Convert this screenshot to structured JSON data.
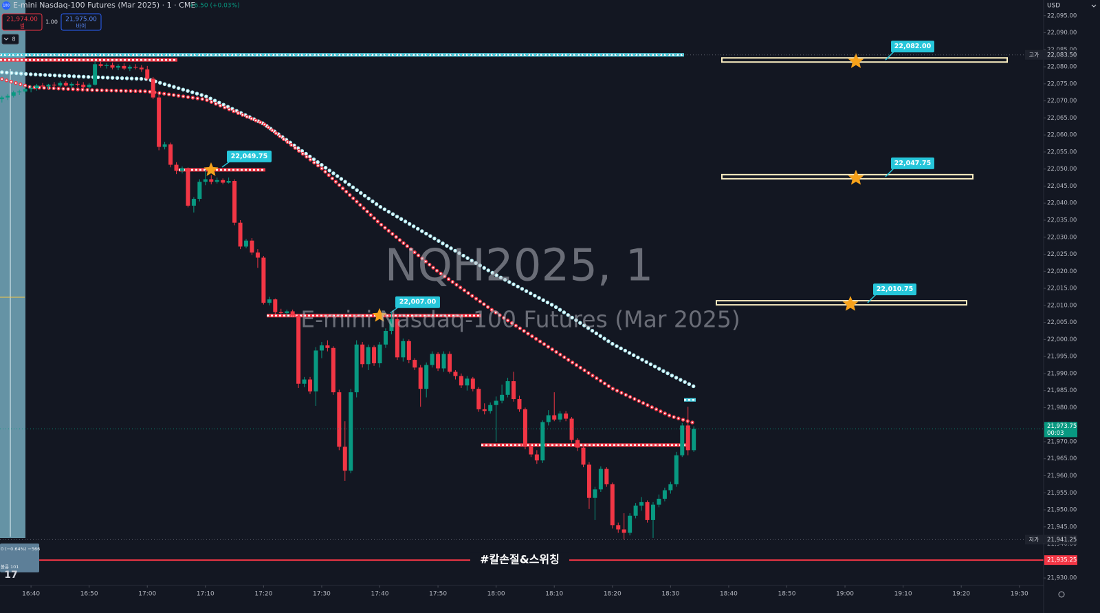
{
  "header": {
    "icon": "100",
    "title": "E-mini Nasdaq-100 Futures (Mar 2025) · 1 · CME",
    "change": "+6.50 (+0.03%)",
    "sell_price": "21,974.00",
    "sell_label": "셀",
    "spread": "1.00",
    "buy_price": "21,975.00",
    "buy_label": "바이",
    "indicators": "8",
    "currency": "USD"
  },
  "overlay": {
    "line1": "0 (−0.64%) −566",
    "line2": "볼륨 101"
  },
  "chart_data": {
    "type": "candlestick",
    "watermark": "NQH2025, 1",
    "watermark_subtitle": "E-mini Nasdaq-100 Futures (Mar 2025)",
    "annotation": "#칼손절&스위칭",
    "up_color": "#089981",
    "down_color": "#f23645",
    "xlim": [
      "16:34:40",
      "19:34:10"
    ],
    "xticks": [
      "16:40",
      "16:50",
      "17:00",
      "17:10",
      "17:20",
      "17:30",
      "17:40",
      "17:50",
      "18:00",
      "18:10",
      "18:20",
      "18:30",
      "18:40",
      "18:50",
      "19:00",
      "19:10",
      "19:20",
      "19:30"
    ],
    "ylim": [
      21927.8,
      22099.6
    ],
    "yticks": [
      {
        "value": 22095,
        "label": "22,095.00"
      },
      {
        "value": 22090,
        "label": "22,090.00"
      },
      {
        "value": 22085,
        "label": "22,085.00"
      },
      {
        "value": 22080,
        "label": "22,080.00"
      },
      {
        "value": 22075,
        "label": "22,075.00"
      },
      {
        "value": 22070,
        "label": "22,070.00"
      },
      {
        "value": 22065,
        "label": "22,065.00"
      },
      {
        "value": 22060,
        "label": "22,060.00"
      },
      {
        "value": 22055,
        "label": "22,055.00"
      },
      {
        "value": 22050,
        "label": "22,050.00"
      },
      {
        "value": 22045,
        "label": "22,045.00"
      },
      {
        "value": 22040,
        "label": "22,040.00"
      },
      {
        "value": 22035,
        "label": "22,035.00"
      },
      {
        "value": 22030,
        "label": "22,030.00"
      },
      {
        "value": 22025,
        "label": "22,025.00"
      },
      {
        "value": 22020,
        "label": "22,020.00"
      },
      {
        "value": 22015,
        "label": "22,015.00"
      },
      {
        "value": 22010,
        "label": "22,010.00"
      },
      {
        "value": 22005,
        "label": "22,005.00"
      },
      {
        "value": 22000,
        "label": "22,000.00"
      },
      {
        "value": 21995,
        "label": "21,995.00"
      },
      {
        "value": 21990,
        "label": "21,990.00"
      },
      {
        "value": 21985,
        "label": "21,985.00"
      },
      {
        "value": 21980,
        "label": "21,980.00"
      },
      {
        "value": 21975,
        "label": "21,975.00"
      },
      {
        "value": 21970,
        "label": "21,970.00"
      },
      {
        "value": 21965,
        "label": "21,965.00"
      },
      {
        "value": 21960,
        "label": "21,960.00"
      },
      {
        "value": 21955,
        "label": "21,955.00"
      },
      {
        "value": 21950,
        "label": "21,950.00"
      },
      {
        "value": 21945,
        "label": "21,945.00"
      },
      {
        "value": 21940,
        "label": "21,940.00"
      },
      {
        "value": 21935,
        "label": "21,935.00"
      },
      {
        "value": 21930,
        "label": "21,930.00"
      }
    ],
    "candles": [
      [
        "16:35",
        22070.5,
        22071.5,
        22069.5,
        22071
      ],
      [
        "16:36",
        22071,
        22072,
        22070.25,
        22071.5
      ],
      [
        "16:37",
        22071.5,
        22073,
        22071,
        22072.5
      ],
      [
        "16:38",
        22072.5,
        22073.25,
        22071.75,
        22072.75
      ],
      [
        "16:39",
        22072.75,
        22074.25,
        22072.25,
        22073.5
      ],
      [
        "16:40",
        22073.5,
        22074.5,
        22072.5,
        22073.75
      ],
      [
        "16:41",
        22073.75,
        22075,
        22073,
        22074.5
      ],
      [
        "16:42",
        22074.5,
        22075.25,
        22073.75,
        22074.25
      ],
      [
        "16:43",
        22074.25,
        22075,
        22073.5,
        22074.75
      ],
      [
        "16:44",
        22074.75,
        22075.5,
        22074,
        22074.5
      ],
      [
        "16:45",
        22074.5,
        22075.75,
        22074,
        22075.25
      ],
      [
        "16:46",
        22075.25,
        22075.75,
        22074.25,
        22074.5
      ],
      [
        "16:47",
        22074.5,
        22075.5,
        22073.75,
        22075
      ],
      [
        "16:48",
        22075,
        22075.75,
        22074.25,
        22074.75
      ],
      [
        "16:49",
        22074.75,
        22075.5,
        22073.5,
        22074
      ],
      [
        "16:50",
        22074,
        22075.25,
        22073.5,
        22074.75
      ],
      [
        "16:51",
        22074.75,
        22081.75,
        22074.5,
        22080.75
      ],
      [
        "16:52",
        22080.75,
        22081.5,
        22079.75,
        22080.25
      ],
      [
        "16:53",
        22080.25,
        22081,
        22079.5,
        22080.5
      ],
      [
        "16:54",
        22080.5,
        22081.25,
        22079.25,
        22079.75
      ],
      [
        "16:55",
        22079.75,
        22080.75,
        22079,
        22080.25
      ],
      [
        "16:56",
        22080.25,
        22081,
        22079,
        22079.5
      ],
      [
        "16:57",
        22079.5,
        22080.5,
        22078.75,
        22080
      ],
      [
        "16:58",
        22080,
        22080.75,
        22079.25,
        22079.75
      ],
      [
        "16:59",
        22079.75,
        22080.5,
        22078.5,
        22079.25
      ],
      [
        "17:00",
        22079.25,
        22080.25,
        22076,
        22076.5
      ],
      [
        "17:01",
        22076.5,
        22077,
        22070.5,
        22071
      ],
      [
        "17:02",
        22071,
        22071.75,
        22055.5,
        22056.5
      ],
      [
        "17:03",
        22056.5,
        22058,
        22055.75,
        22057.25
      ],
      [
        "17:04",
        22057.25,
        22057.75,
        22050.5,
        22051.25
      ],
      [
        "17:05",
        22051.25,
        22052,
        22048.5,
        22049.5
      ],
      [
        "17:06",
        22049.5,
        22050.75,
        22048.75,
        22050.25
      ],
      [
        "17:07",
        22050.25,
        22050.5,
        22038.75,
        22039.25
      ],
      [
        "17:08",
        22039.25,
        22041.75,
        22037.25,
        22041.25
      ],
      [
        "17:09",
        22041.25,
        22047,
        22040.5,
        22046.25
      ],
      [
        "17:10",
        22046.25,
        22049.75,
        22045.25,
        22047
      ],
      [
        "17:11",
        22047,
        22048.25,
        22045.5,
        22046.25
      ],
      [
        "17:12",
        22046.25,
        22047.5,
        22045.75,
        22046.75
      ],
      [
        "17:13",
        22046.75,
        22047.25,
        22045.5,
        22046
      ],
      [
        "17:14",
        22046,
        22047.5,
        22045.75,
        22046.5
      ],
      [
        "17:15",
        22046.5,
        22047,
        22033.5,
        22034.25
      ],
      [
        "17:16",
        22034.25,
        22035,
        22026.5,
        22027.25
      ],
      [
        "17:17",
        22027.25,
        22029.5,
        22026.75,
        22029
      ],
      [
        "17:18",
        22029,
        22029.75,
        22024.75,
        22025.5
      ],
      [
        "17:19",
        22025.5,
        22026.5,
        22021,
        22024
      ],
      [
        "17:20",
        22024,
        22024.5,
        22010.25,
        22010.75
      ],
      [
        "17:21",
        22010.75,
        22012.5,
        22010,
        22011.75
      ],
      [
        "17:22",
        22011.75,
        22012,
        22007.25,
        22008
      ],
      [
        "17:23",
        22008,
        22009,
        22007.25,
        22007.75
      ],
      [
        "17:24",
        22007.75,
        22008.75,
        22006.5,
        22008.25
      ],
      [
        "17:25",
        22008.25,
        22008.75,
        22006.5,
        22007
      ],
      [
        "17:26",
        22007,
        22007.5,
        21985.75,
        21987
      ],
      [
        "17:27",
        21987,
        21989,
        21986,
        21988.25
      ],
      [
        "17:28",
        21988.25,
        21989,
        21984,
        21984.75
      ],
      [
        "17:29",
        21984.75,
        21997.75,
        21980.5,
        21996.75
      ],
      [
        "17:30",
        21996.75,
        21999.25,
        21994.5,
        21998.25
      ],
      [
        "17:31",
        21998.25,
        21999.75,
        21996.5,
        21997.5
      ],
      [
        "17:32",
        21997.5,
        21998,
        21983.75,
        21984.5
      ],
      [
        "17:33",
        21984.5,
        21985.25,
        21967.5,
        21968.5
      ],
      [
        "17:34",
        21968.5,
        21976,
        21958.5,
        21961.5
      ],
      [
        "17:35",
        21961.5,
        21985.5,
        21960.75,
        21984.5
      ],
      [
        "17:36",
        21984.5,
        21999.75,
        21983,
        21998.5
      ],
      [
        "17:37",
        21998.5,
        21999.25,
        21991.75,
        21992.75
      ],
      [
        "17:38",
        21992.75,
        21998.5,
        21991,
        21997.75
      ],
      [
        "17:39",
        21997.75,
        21998.25,
        21992.25,
        21993
      ],
      [
        "17:40",
        21993,
        21999.25,
        21991.75,
        21998.5
      ],
      [
        "17:41",
        21998.5,
        22003.25,
        21997.5,
        22002.5
      ],
      [
        "17:42",
        22002.5,
        22007.75,
        22001.5,
        22006
      ],
      [
        "17:43",
        22006,
        22006.75,
        21994,
        21994.75
      ],
      [
        "17:44",
        21994.75,
        22000.25,
        21993.5,
        21999.5
      ],
      [
        "17:45",
        21999.5,
        22000,
        21993,
        21994
      ],
      [
        "17:46",
        21994,
        21994.5,
        21991,
        21991.75
      ],
      [
        "17:47",
        21991.75,
        21992.5,
        21980.25,
        21985.5
      ],
      [
        "17:48",
        21985.5,
        21993.25,
        21983,
        21992.5
      ],
      [
        "17:49",
        21992.5,
        21996.5,
        21991.75,
        21995.75
      ],
      [
        "17:50",
        21995.75,
        21996.25,
        21990.75,
        21991.5
      ],
      [
        "17:51",
        21991.5,
        21996.5,
        21990.5,
        21995.75
      ],
      [
        "17:52",
        21995.75,
        21996.5,
        21990,
        21990.5
      ],
      [
        "17:53",
        21990.5,
        21991,
        21988.25,
        21989.25
      ],
      [
        "17:54",
        21989.25,
        21990,
        21985.75,
        21986.5
      ],
      [
        "17:55",
        21986.5,
        21989.25,
        21985,
        21988.5
      ],
      [
        "17:56",
        21988.5,
        21989,
        21984.75,
        21985.5
      ],
      [
        "17:57",
        21985.5,
        21986,
        21978.75,
        21979.5
      ],
      [
        "17:58",
        21979.5,
        21981.25,
        21978,
        21979
      ],
      [
        "17:59",
        21979,
        21981.5,
        21978.25,
        21980.75
      ],
      [
        "18:00",
        21980.75,
        21983.25,
        21970,
        21982
      ],
      [
        "18:01",
        21982,
        21986.75,
        21981.25,
        21983.75
      ],
      [
        "18:02",
        21983.75,
        21988.75,
        21983,
        21987.75
      ],
      [
        "18:03",
        21987.75,
        21990.5,
        21981.75,
        21982.5
      ],
      [
        "18:04",
        21982.5,
        21983.5,
        21978.75,
        21979.5
      ],
      [
        "18:05",
        21979.5,
        21980,
        21967.75,
        21968.5
      ],
      [
        "18:06",
        21968.5,
        21969.25,
        21965.5,
        21966.25
      ],
      [
        "18:07",
        21966.25,
        21967.5,
        21963.5,
        21964.5
      ],
      [
        "18:08",
        21964.5,
        21976.25,
        21963.75,
        21975.75
      ],
      [
        "18:09",
        21975.75,
        21979.25,
        21974.75,
        21977.75
      ],
      [
        "18:10",
        21977.75,
        21984.5,
        21976,
        21976.5
      ],
      [
        "18:11",
        21976.5,
        21979,
        21975.75,
        21978.25
      ],
      [
        "18:12",
        21978.25,
        21979,
        21976,
        21976.75
      ],
      [
        "18:13",
        21976.75,
        21977.25,
        21969.75,
        21970.5
      ],
      [
        "18:14",
        21970.5,
        21971,
        21967.25,
        21968.25
      ],
      [
        "18:15",
        21968.25,
        21969,
        21962.5,
        21963.25
      ],
      [
        "18:16",
        21963.25,
        21964,
        21950.25,
        21953.5
      ],
      [
        "18:17",
        21953.5,
        21956.75,
        21947,
        21956
      ],
      [
        "18:18",
        21956,
        21962.75,
        21955.25,
        21962
      ],
      [
        "18:19",
        21962,
        21962.5,
        21956.75,
        21957.5
      ],
      [
        "18:20",
        21957.5,
        21958,
        21944.5,
        21945.5
      ],
      [
        "18:21",
        21945.5,
        21946.25,
        21943.25,
        21944.25
      ],
      [
        "18:22",
        21944.25,
        21949,
        21941.25,
        21943.25
      ],
      [
        "18:23",
        21943.25,
        21949,
        21942.5,
        21948.25
      ],
      [
        "18:24",
        21948.25,
        21952,
        21947.5,
        21951.25
      ],
      [
        "18:25",
        21951.25,
        21953.75,
        21949.75,
        21952.25
      ],
      [
        "18:26",
        21952.25,
        21952.75,
        21946.25,
        21947
      ],
      [
        "18:27",
        21947,
        21952.25,
        21941.75,
        21951.5
      ],
      [
        "18:28",
        21951.5,
        21954.5,
        21950.75,
        21953.25
      ],
      [
        "18:29",
        21953.25,
        21956.5,
        21952.5,
        21955.75
      ],
      [
        "18:30",
        21955.75,
        21958.25,
        21954.75,
        21957.5
      ],
      [
        "18:31",
        21957.5,
        21967,
        21956.75,
        21966
      ],
      [
        "18:32",
        21966,
        21975.5,
        21965.5,
        21974.75
      ],
      [
        "18:33",
        21974.75,
        21980.25,
        21966,
        21967.5
      ],
      [
        "18:34",
        21967.5,
        21974.5,
        21967,
        21973.75
      ]
    ],
    "series": [
      {
        "color": "#b2ebf2",
        "x": [
          "16:35",
          "16:40",
          "16:50",
          "17:00",
          "17:10",
          "17:20",
          "17:30",
          "17:40",
          "17:50",
          "18:00",
          "18:10",
          "18:20",
          "18:30",
          "18:34"
        ],
        "values": [
          22078.4,
          22077.8,
          22077,
          22076.4,
          22071.4,
          22063.3,
          22051.2,
          22039,
          22029,
          22018.9,
          22009.8,
          21998.7,
          21989.6,
          21986.2
        ]
      },
      {
        "color": "#f23645",
        "x": [
          "16:35",
          "16:40",
          "16:50",
          "17:00",
          "17:10",
          "17:20",
          "17:30",
          "17:40",
          "17:50",
          "18:00",
          "18:10",
          "18:20",
          "18:30",
          "18:34"
        ],
        "values": [
          22076.4,
          22074,
          22073.2,
          22072.8,
          22070.4,
          22063.3,
          22050.2,
          22034,
          22019.9,
          22007.8,
          21996.7,
          21985.6,
          21977.5,
          21975.5
        ]
      }
    ],
    "levels": [
      {
        "value": 22082,
        "color": "#f23645"
      },
      {
        "value": 22083.5,
        "color": "#4dd0e1"
      },
      {
        "value": 22049.75,
        "color": "#f23645"
      },
      {
        "value": 22007,
        "color": "#f23645"
      },
      {
        "value": 21969,
        "color": "#f23645"
      },
      {
        "value": 21982.25,
        "color": "#4dd0e1"
      }
    ],
    "targets": [
      {
        "value": 22049.75,
        "label": "22,049.75"
      },
      {
        "value": 22007,
        "label": "22,007.00"
      }
    ],
    "zones": [
      {
        "value": 22082,
        "label": "22,082.00"
      },
      {
        "value": 22047.75,
        "label": "22,047.75"
      },
      {
        "value": 22010.75,
        "label": "22,010.75"
      }
    ],
    "price_markers": [
      {
        "value": 22083.5,
        "label": "22,083.50",
        "tag": "고가"
      },
      {
        "value": 21973.75,
        "label": "21,973.75",
        "countdown": "00:03"
      },
      {
        "value": 21941.25,
        "label": "21,941.25",
        "tag": "저가"
      },
      {
        "value": 21935.25,
        "label": "21,935.25"
      }
    ]
  }
}
